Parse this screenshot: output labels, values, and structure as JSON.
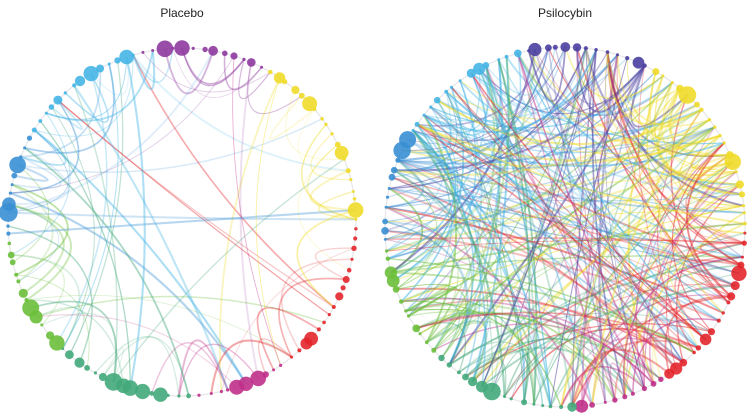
{
  "panels": [
    {
      "title": "Placebo"
    },
    {
      "title": "Psilocybin"
    }
  ]
}
